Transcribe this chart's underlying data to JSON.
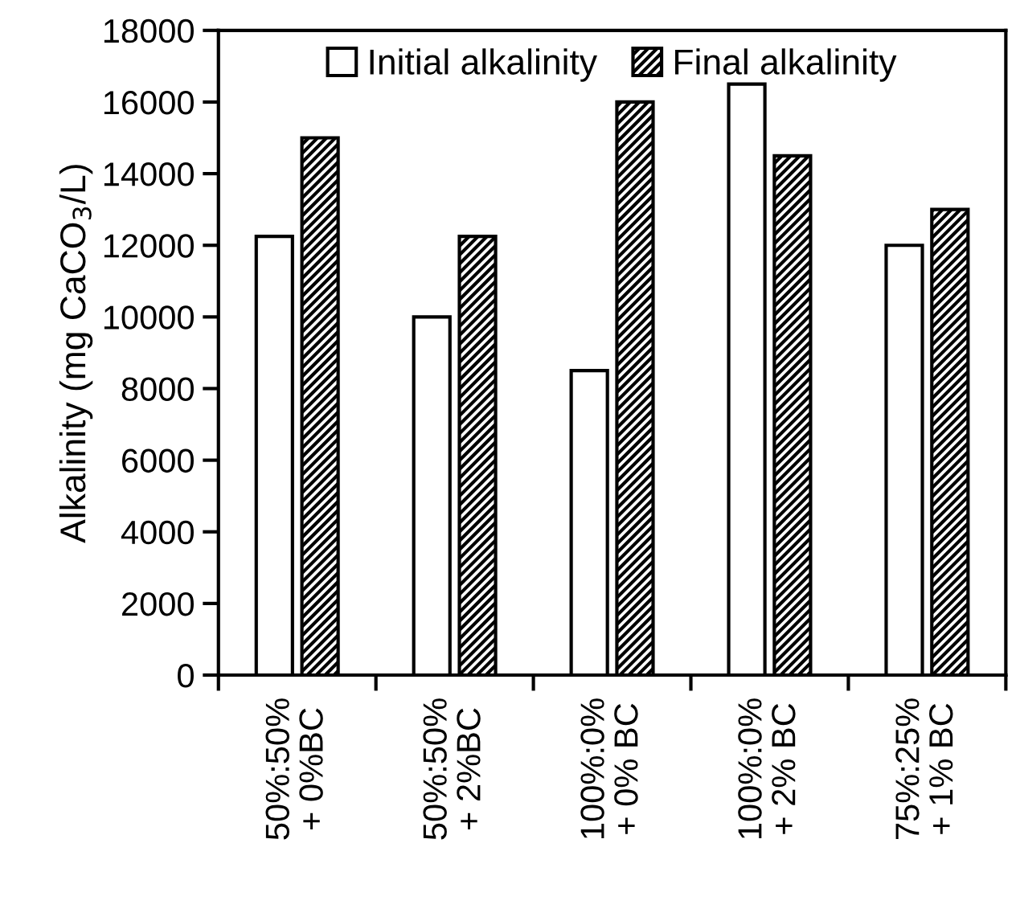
{
  "chart_data": {
    "type": "bar",
    "ylabel": "Alkalinity (mg CaCO$_{3}$/L)",
    "categories": [
      "50%:50%\n+ 0%BC",
      "50%:50%\n+ 2%BC",
      "100%:0%\n+ 0% BC",
      "100%:0%\n+ 2% BC",
      "75%:25%\n+ 1% BC"
    ],
    "series": [
      {
        "name": "Initial alkalinity",
        "color": "#ffffff",
        "values": [
          12250,
          10000,
          8500,
          16500,
          12000
        ]
      },
      {
        "name": "Final alkalinity",
        "color": "#000000",
        "values": [
          15000,
          12250,
          16000,
          14500,
          13000
        ]
      }
    ],
    "ylim": [
      0,
      18000
    ],
    "yticks": [
      0,
      2000,
      4000,
      6000,
      8000,
      10000,
      12000,
      14000,
      16000,
      18000
    ],
    "grid": false,
    "legend": "top"
  }
}
